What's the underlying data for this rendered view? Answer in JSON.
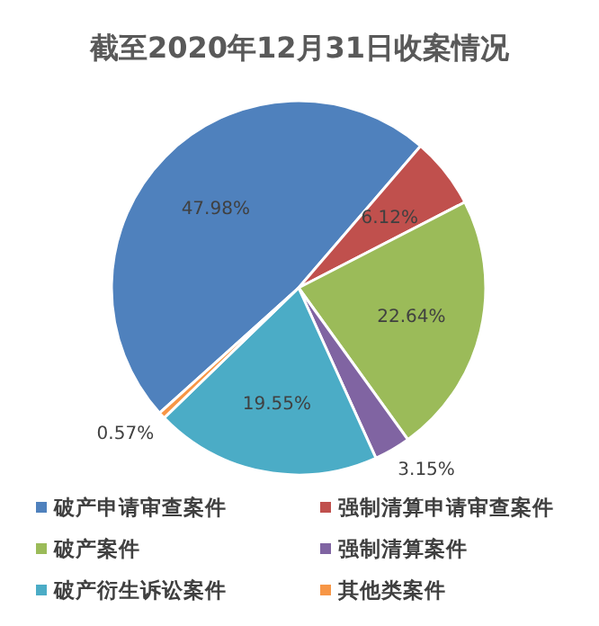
{
  "chart_data": {
    "type": "pie",
    "title": "截至2020年12月31日收案情况",
    "categories": [
      "破产申请审查案件",
      "强制清算申请审查案件",
      "破产案件",
      "强制清算案件",
      "破产衍生诉讼案件",
      "其他类案件"
    ],
    "values": [
      47.98,
      6.12,
      22.64,
      3.15,
      19.55,
      0.57
    ],
    "value_labels": [
      "47.98%",
      "6.12%",
      "22.64%",
      "3.15%",
      "19.55%",
      "0.57%"
    ],
    "colors": [
      "#4f81bd",
      "#c0504d",
      "#9bbb59",
      "#8064a2",
      "#4bacc6",
      "#f79646"
    ],
    "legend": "bottom"
  }
}
